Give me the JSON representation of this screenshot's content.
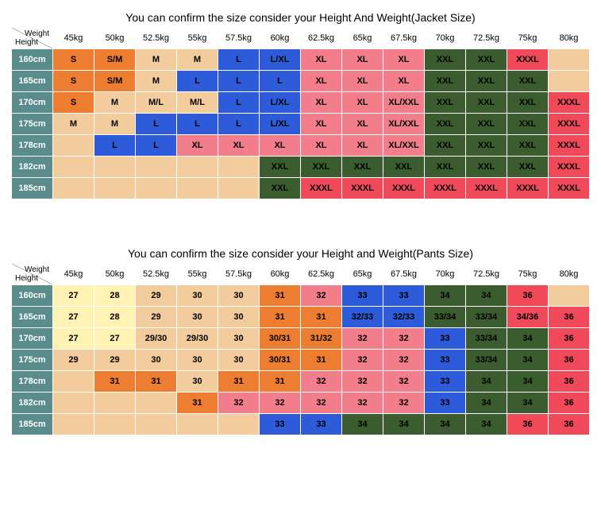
{
  "colors": {
    "teal": "#5b8c8c",
    "orange": "#ed7d31",
    "tan": "#f2cc9c",
    "blue": "#2e5bd9",
    "pink": "#f27d8b",
    "darkgreen": "#3b5c2e",
    "red": "#f04a5a",
    "paleyellow": "#fff2b3",
    "white": "#ffffff",
    "header_bg": "#ffffff",
    "header_text": "#000000",
    "row_head_text": "#ffffff"
  },
  "jacket": {
    "title": "You can confirm the size consider  your Height And Weight(Jacket Size)",
    "weight_label": "Weight",
    "height_label": "Height",
    "weights": [
      "45kg",
      "50kg",
      "52.5kg",
      "55kg",
      "57.5kg",
      "60kg",
      "62.5kg",
      "65kg",
      "67.5kg",
      "70kg",
      "72.5kg",
      "75kg",
      "80kg"
    ],
    "heights": [
      "160cm",
      "165cm",
      "170cm",
      "175cm",
      "178cm",
      "182cm",
      "185cm"
    ],
    "cells": [
      [
        [
          "S",
          "orange"
        ],
        [
          "S/M",
          "orange"
        ],
        [
          "M",
          "tan"
        ],
        [
          "M",
          "tan"
        ],
        [
          "L",
          "blue"
        ],
        [
          "L/XL",
          "blue"
        ],
        [
          "XL",
          "pink"
        ],
        [
          "XL",
          "pink"
        ],
        [
          "XL",
          "pink"
        ],
        [
          "XXL",
          "darkgreen"
        ],
        [
          "XXL",
          "darkgreen"
        ],
        [
          "XXXL",
          "red"
        ],
        [
          "",
          "tan"
        ]
      ],
      [
        [
          "S",
          "orange"
        ],
        [
          "S/M",
          "orange"
        ],
        [
          "M",
          "tan"
        ],
        [
          "L",
          "blue"
        ],
        [
          "L",
          "blue"
        ],
        [
          "L",
          "blue"
        ],
        [
          "XL",
          "pink"
        ],
        [
          "XL",
          "pink"
        ],
        [
          "XL",
          "pink"
        ],
        [
          "XXL",
          "darkgreen"
        ],
        [
          "XXL",
          "darkgreen"
        ],
        [
          "XXL",
          "darkgreen"
        ],
        [
          "",
          "tan"
        ]
      ],
      [
        [
          "S",
          "orange"
        ],
        [
          "M",
          "tan"
        ],
        [
          "M/L",
          "tan"
        ],
        [
          "M/L",
          "tan"
        ],
        [
          "L",
          "blue"
        ],
        [
          "L/XL",
          "blue"
        ],
        [
          "XL",
          "pink"
        ],
        [
          "XL",
          "pink"
        ],
        [
          "XL/XXL",
          "pink"
        ],
        [
          "XXL",
          "darkgreen"
        ],
        [
          "XXL",
          "darkgreen"
        ],
        [
          "XXL",
          "darkgreen"
        ],
        [
          "XXXL",
          "red"
        ]
      ],
      [
        [
          "M",
          "tan"
        ],
        [
          "M",
          "tan"
        ],
        [
          "L",
          "blue"
        ],
        [
          "L",
          "blue"
        ],
        [
          "L",
          "blue"
        ],
        [
          "L/XL",
          "blue"
        ],
        [
          "XL",
          "pink"
        ],
        [
          "XL",
          "pink"
        ],
        [
          "XL/XXL",
          "pink"
        ],
        [
          "XXL",
          "darkgreen"
        ],
        [
          "XXL",
          "darkgreen"
        ],
        [
          "XXL",
          "darkgreen"
        ],
        [
          "XXXL",
          "red"
        ]
      ],
      [
        [
          "",
          "tan"
        ],
        [
          "L",
          "blue"
        ],
        [
          "L",
          "blue"
        ],
        [
          "XL",
          "pink"
        ],
        [
          "XL",
          "pink"
        ],
        [
          "XL",
          "pink"
        ],
        [
          "XL",
          "pink"
        ],
        [
          "XL",
          "pink"
        ],
        [
          "XL/XXL",
          "pink"
        ],
        [
          "XXL",
          "darkgreen"
        ],
        [
          "XXL",
          "darkgreen"
        ],
        [
          "XXL",
          "darkgreen"
        ],
        [
          "XXXL",
          "red"
        ]
      ],
      [
        [
          "",
          "tan"
        ],
        [
          "",
          "tan"
        ],
        [
          "",
          "tan"
        ],
        [
          "",
          "tan"
        ],
        [
          "",
          "tan"
        ],
        [
          "XXL",
          "darkgreen"
        ],
        [
          "XXL",
          "darkgreen"
        ],
        [
          "XXL",
          "darkgreen"
        ],
        [
          "XXL",
          "darkgreen"
        ],
        [
          "XXL",
          "darkgreen"
        ],
        [
          "XXL",
          "darkgreen"
        ],
        [
          "XXL",
          "darkgreen"
        ],
        [
          "XXXL",
          "red"
        ]
      ],
      [
        [
          "",
          "tan"
        ],
        [
          "",
          "tan"
        ],
        [
          "",
          "tan"
        ],
        [
          "",
          "tan"
        ],
        [
          "",
          "tan"
        ],
        [
          "XXL",
          "darkgreen"
        ],
        [
          "XXXL",
          "red"
        ],
        [
          "XXXL",
          "red"
        ],
        [
          "XXXL",
          "red"
        ],
        [
          "XXXL",
          "red"
        ],
        [
          "XXXL",
          "red"
        ],
        [
          "XXXL",
          "red"
        ],
        [
          "XXXL",
          "red"
        ]
      ]
    ]
  },
  "pants": {
    "title": "You can confirm the size consider your Height and Weight(Pants Size)",
    "weight_label": "Weight",
    "height_label": "Height",
    "weights": [
      "45kg",
      "50kg",
      "52.5kg",
      "55kg",
      "57.5kg",
      "60kg",
      "62.5kg",
      "65kg",
      "67.5kg",
      "70kg",
      "72.5kg",
      "75kg",
      "80kg"
    ],
    "heights": [
      "160cm",
      "165cm",
      "170cm",
      "175cm",
      "178cm",
      "182cm",
      "185cm"
    ],
    "cells": [
      [
        [
          "27",
          "paleyellow"
        ],
        [
          "28",
          "paleyellow"
        ],
        [
          "29",
          "tan"
        ],
        [
          "30",
          "tan"
        ],
        [
          "30",
          "tan"
        ],
        [
          "31",
          "orange"
        ],
        [
          "32",
          "pink"
        ],
        [
          "33",
          "blue"
        ],
        [
          "33",
          "blue"
        ],
        [
          "34",
          "darkgreen"
        ],
        [
          "34",
          "darkgreen"
        ],
        [
          "36",
          "red"
        ],
        [
          "",
          "tan"
        ]
      ],
      [
        [
          "27",
          "paleyellow"
        ],
        [
          "28",
          "paleyellow"
        ],
        [
          "29",
          "tan"
        ],
        [
          "30",
          "tan"
        ],
        [
          "30",
          "tan"
        ],
        [
          "31",
          "orange"
        ],
        [
          "31",
          "orange"
        ],
        [
          "32/33",
          "blue"
        ],
        [
          "32/33",
          "blue"
        ],
        [
          "33/34",
          "darkgreen"
        ],
        [
          "33/34",
          "darkgreen"
        ],
        [
          "34/36",
          "red"
        ],
        [
          "36",
          "red"
        ]
      ],
      [
        [
          "27",
          "paleyellow"
        ],
        [
          "27",
          "paleyellow"
        ],
        [
          "29/30",
          "tan"
        ],
        [
          "29/30",
          "tan"
        ],
        [
          "30",
          "tan"
        ],
        [
          "30/31",
          "orange"
        ],
        [
          "31/32",
          "orange"
        ],
        [
          "32",
          "pink"
        ],
        [
          "32",
          "pink"
        ],
        [
          "33",
          "blue"
        ],
        [
          "33/34",
          "darkgreen"
        ],
        [
          "34",
          "darkgreen"
        ],
        [
          "36",
          "red"
        ]
      ],
      [
        [
          "29",
          "tan"
        ],
        [
          "29",
          "tan"
        ],
        [
          "30",
          "tan"
        ],
        [
          "30",
          "tan"
        ],
        [
          "30",
          "tan"
        ],
        [
          "30/31",
          "orange"
        ],
        [
          "31",
          "orange"
        ],
        [
          "32",
          "pink"
        ],
        [
          "32",
          "pink"
        ],
        [
          "33",
          "blue"
        ],
        [
          "33/34",
          "darkgreen"
        ],
        [
          "34",
          "darkgreen"
        ],
        [
          "36",
          "red"
        ]
      ],
      [
        [
          "",
          "tan"
        ],
        [
          "31",
          "orange"
        ],
        [
          "31",
          "orange"
        ],
        [
          "30",
          "tan"
        ],
        [
          "31",
          "orange"
        ],
        [
          "31",
          "orange"
        ],
        [
          "32",
          "pink"
        ],
        [
          "32",
          "pink"
        ],
        [
          "32",
          "pink"
        ],
        [
          "33",
          "blue"
        ],
        [
          "34",
          "darkgreen"
        ],
        [
          "34",
          "darkgreen"
        ],
        [
          "36",
          "red"
        ]
      ],
      [
        [
          "",
          "tan"
        ],
        [
          "",
          "tan"
        ],
        [
          "",
          "tan"
        ],
        [
          "31",
          "orange"
        ],
        [
          "32",
          "pink"
        ],
        [
          "32",
          "pink"
        ],
        [
          "32",
          "pink"
        ],
        [
          "32",
          "pink"
        ],
        [
          "32",
          "pink"
        ],
        [
          "33",
          "blue"
        ],
        [
          "34",
          "darkgreen"
        ],
        [
          "34",
          "darkgreen"
        ],
        [
          "36",
          "red"
        ]
      ],
      [
        [
          "",
          "tan"
        ],
        [
          "",
          "tan"
        ],
        [
          "",
          "tan"
        ],
        [
          "",
          "tan"
        ],
        [
          "",
          "tan"
        ],
        [
          "33",
          "blue"
        ],
        [
          "33",
          "blue"
        ],
        [
          "34",
          "darkgreen"
        ],
        [
          "34",
          "darkgreen"
        ],
        [
          "34",
          "darkgreen"
        ],
        [
          "34",
          "darkgreen"
        ],
        [
          "36",
          "red"
        ],
        [
          "36",
          "red"
        ]
      ]
    ]
  }
}
